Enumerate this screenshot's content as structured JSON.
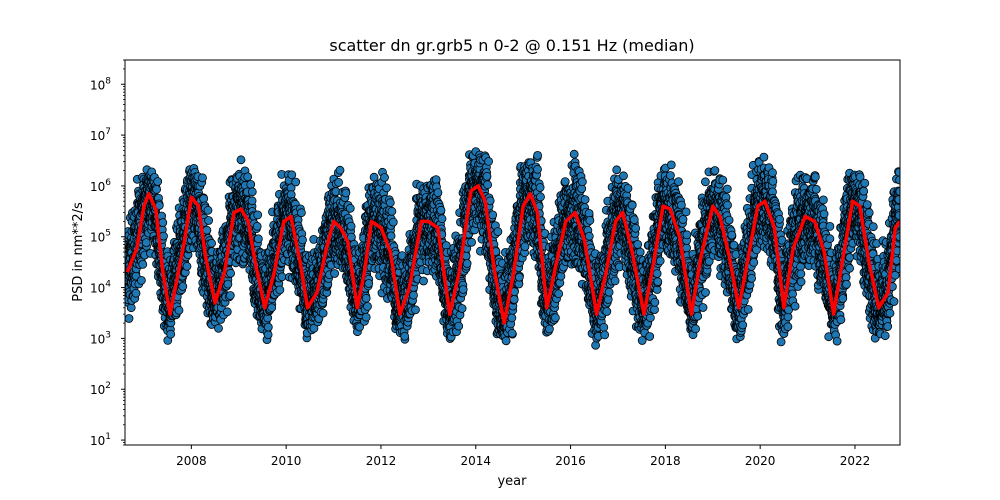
{
  "chart_data": {
    "type": "scatter",
    "title": "scatter dn gr.grb5 n 0-2 @ 0.151 Hz (median)",
    "xlabel": "year",
    "ylabel": "PSD in nm**2/s",
    "yscale": "log",
    "xlim": [
      2006.6,
      2022.95
    ],
    "ylim": [
      8,
      300000000
    ],
    "x_ticks": [
      2008,
      2010,
      2012,
      2014,
      2016,
      2018,
      2020,
      2022
    ],
    "x_tick_labels": [
      "2008",
      "2010",
      "2012",
      "2014",
      "2016",
      "2018",
      "2020",
      "2022"
    ],
    "y_ticks": [
      10,
      100,
      1000,
      10000,
      100000,
      1000000,
      10000000,
      100000000
    ],
    "y_tick_labels": [
      {
        "base": "10",
        "exp": "1"
      },
      {
        "base": "10",
        "exp": "2"
      },
      {
        "base": "10",
        "exp": "3"
      },
      {
        "base": "10",
        "exp": "4"
      },
      {
        "base": "10",
        "exp": "5"
      },
      {
        "base": "10",
        "exp": "6"
      },
      {
        "base": "10",
        "exp": "7"
      },
      {
        "base": "10",
        "exp": "8"
      }
    ],
    "grid": false,
    "legend": "none",
    "colors": {
      "scatter_fill": "#1f77b4",
      "scatter_edge": "#000000",
      "median_line": "#ff0000"
    },
    "scatter_envelope": {
      "description": "dense daily scatter between lower and upper envelopes (seasonal)",
      "peaks": [
        {
          "x": 2007.05,
          "upper": 2500000
        },
        {
          "x": 2008.0,
          "upper": 4500000
        },
        {
          "x": 2009.0,
          "upper": 4000000
        },
        {
          "x": 2010.0,
          "upper": 3000000
        },
        {
          "x": 2011.0,
          "upper": 2500000
        },
        {
          "x": 2012.0,
          "upper": 3000000
        },
        {
          "x": 2013.0,
          "upper": 2500000
        },
        {
          "x": 2014.0,
          "upper": 7000000
        },
        {
          "x": 2015.1,
          "upper": 10000000
        },
        {
          "x": 2016.0,
          "upper": 6000000
        },
        {
          "x": 2017.1,
          "upper": 4000000
        },
        {
          "x": 2018.0,
          "upper": 4000000
        },
        {
          "x": 2019.0,
          "upper": 3000000
        },
        {
          "x": 2020.0,
          "upper": 9000000
        },
        {
          "x": 2021.0,
          "upper": 3000000
        },
        {
          "x": 2022.0,
          "upper": 4000000
        }
      ],
      "troughs": [
        {
          "x": 2007.5,
          "lower": 600
        },
        {
          "x": 2008.5,
          "lower": 800
        },
        {
          "x": 2009.5,
          "lower": 800
        },
        {
          "x": 2010.5,
          "lower": 800
        },
        {
          "x": 2011.5,
          "lower": 800
        },
        {
          "x": 2012.5,
          "lower": 700
        },
        {
          "x": 2013.5,
          "lower": 700
        },
        {
          "x": 2014.6,
          "lower": 600
        },
        {
          "x": 2015.5,
          "lower": 600
        },
        {
          "x": 2016.6,
          "lower": 600
        },
        {
          "x": 2017.6,
          "lower": 700
        },
        {
          "x": 2018.6,
          "lower": 700
        },
        {
          "x": 2019.5,
          "lower": 500
        },
        {
          "x": 2020.5,
          "lower": 600
        },
        {
          "x": 2021.5,
          "lower": 700
        },
        {
          "x": 2022.5,
          "lower": 700
        }
      ]
    },
    "series": [
      {
        "name": "",
        "kind": "median_line",
        "points": [
          [
            2006.65,
            20000
          ],
          [
            2006.85,
            60000
          ],
          [
            2007.0,
            400000
          ],
          [
            2007.1,
            700000
          ],
          [
            2007.25,
            350000
          ],
          [
            2007.4,
            20000
          ],
          [
            2007.55,
            3000
          ],
          [
            2007.7,
            15000
          ],
          [
            2007.85,
            80000
          ],
          [
            2008.0,
            600000
          ],
          [
            2008.15,
            400000
          ],
          [
            2008.3,
            40000
          ],
          [
            2008.5,
            5000
          ],
          [
            2008.7,
            20000
          ],
          [
            2008.9,
            300000
          ],
          [
            2009.05,
            350000
          ],
          [
            2009.2,
            200000
          ],
          [
            2009.35,
            30000
          ],
          [
            2009.55,
            4000
          ],
          [
            2009.75,
            20000
          ],
          [
            2009.95,
            200000
          ],
          [
            2010.1,
            250000
          ],
          [
            2010.3,
            30000
          ],
          [
            2010.45,
            4000
          ],
          [
            2010.65,
            8000
          ],
          [
            2010.85,
            60000
          ],
          [
            2011.0,
            200000
          ],
          [
            2011.15,
            150000
          ],
          [
            2011.3,
            80000
          ],
          [
            2011.5,
            4000
          ],
          [
            2011.65,
            20000
          ],
          [
            2011.8,
            200000
          ],
          [
            2012.0,
            150000
          ],
          [
            2012.2,
            50000
          ],
          [
            2012.4,
            3000
          ],
          [
            2012.6,
            10000
          ],
          [
            2012.85,
            200000
          ],
          [
            2013.0,
            200000
          ],
          [
            2013.2,
            150000
          ],
          [
            2013.45,
            3000
          ],
          [
            2013.65,
            20000
          ],
          [
            2013.9,
            800000
          ],
          [
            2014.05,
            1000000
          ],
          [
            2014.2,
            500000
          ],
          [
            2014.4,
            20000
          ],
          [
            2014.6,
            2000
          ],
          [
            2014.8,
            20000
          ],
          [
            2015.0,
            400000
          ],
          [
            2015.15,
            700000
          ],
          [
            2015.3,
            300000
          ],
          [
            2015.5,
            4000
          ],
          [
            2015.7,
            30000
          ],
          [
            2015.9,
            200000
          ],
          [
            2016.1,
            300000
          ],
          [
            2016.3,
            80000
          ],
          [
            2016.55,
            3000
          ],
          [
            2016.75,
            20000
          ],
          [
            2016.95,
            200000
          ],
          [
            2017.1,
            300000
          ],
          [
            2017.3,
            50000
          ],
          [
            2017.55,
            3000
          ],
          [
            2017.75,
            30000
          ],
          [
            2017.95,
            400000
          ],
          [
            2018.1,
            350000
          ],
          [
            2018.3,
            100000
          ],
          [
            2018.55,
            3000
          ],
          [
            2018.75,
            40000
          ],
          [
            2019.0,
            400000
          ],
          [
            2019.15,
            250000
          ],
          [
            2019.35,
            40000
          ],
          [
            2019.55,
            4000
          ],
          [
            2019.75,
            40000
          ],
          [
            2019.95,
            400000
          ],
          [
            2020.1,
            500000
          ],
          [
            2020.3,
            150000
          ],
          [
            2020.5,
            4000
          ],
          [
            2020.7,
            60000
          ],
          [
            2020.95,
            250000
          ],
          [
            2021.15,
            200000
          ],
          [
            2021.35,
            50000
          ],
          [
            2021.55,
            3000
          ],
          [
            2021.75,
            40000
          ],
          [
            2021.95,
            500000
          ],
          [
            2022.1,
            400000
          ],
          [
            2022.3,
            30000
          ],
          [
            2022.5,
            4000
          ],
          [
            2022.7,
            8000
          ],
          [
            2022.85,
            150000
          ],
          [
            2022.95,
            200000
          ]
        ]
      }
    ]
  }
}
